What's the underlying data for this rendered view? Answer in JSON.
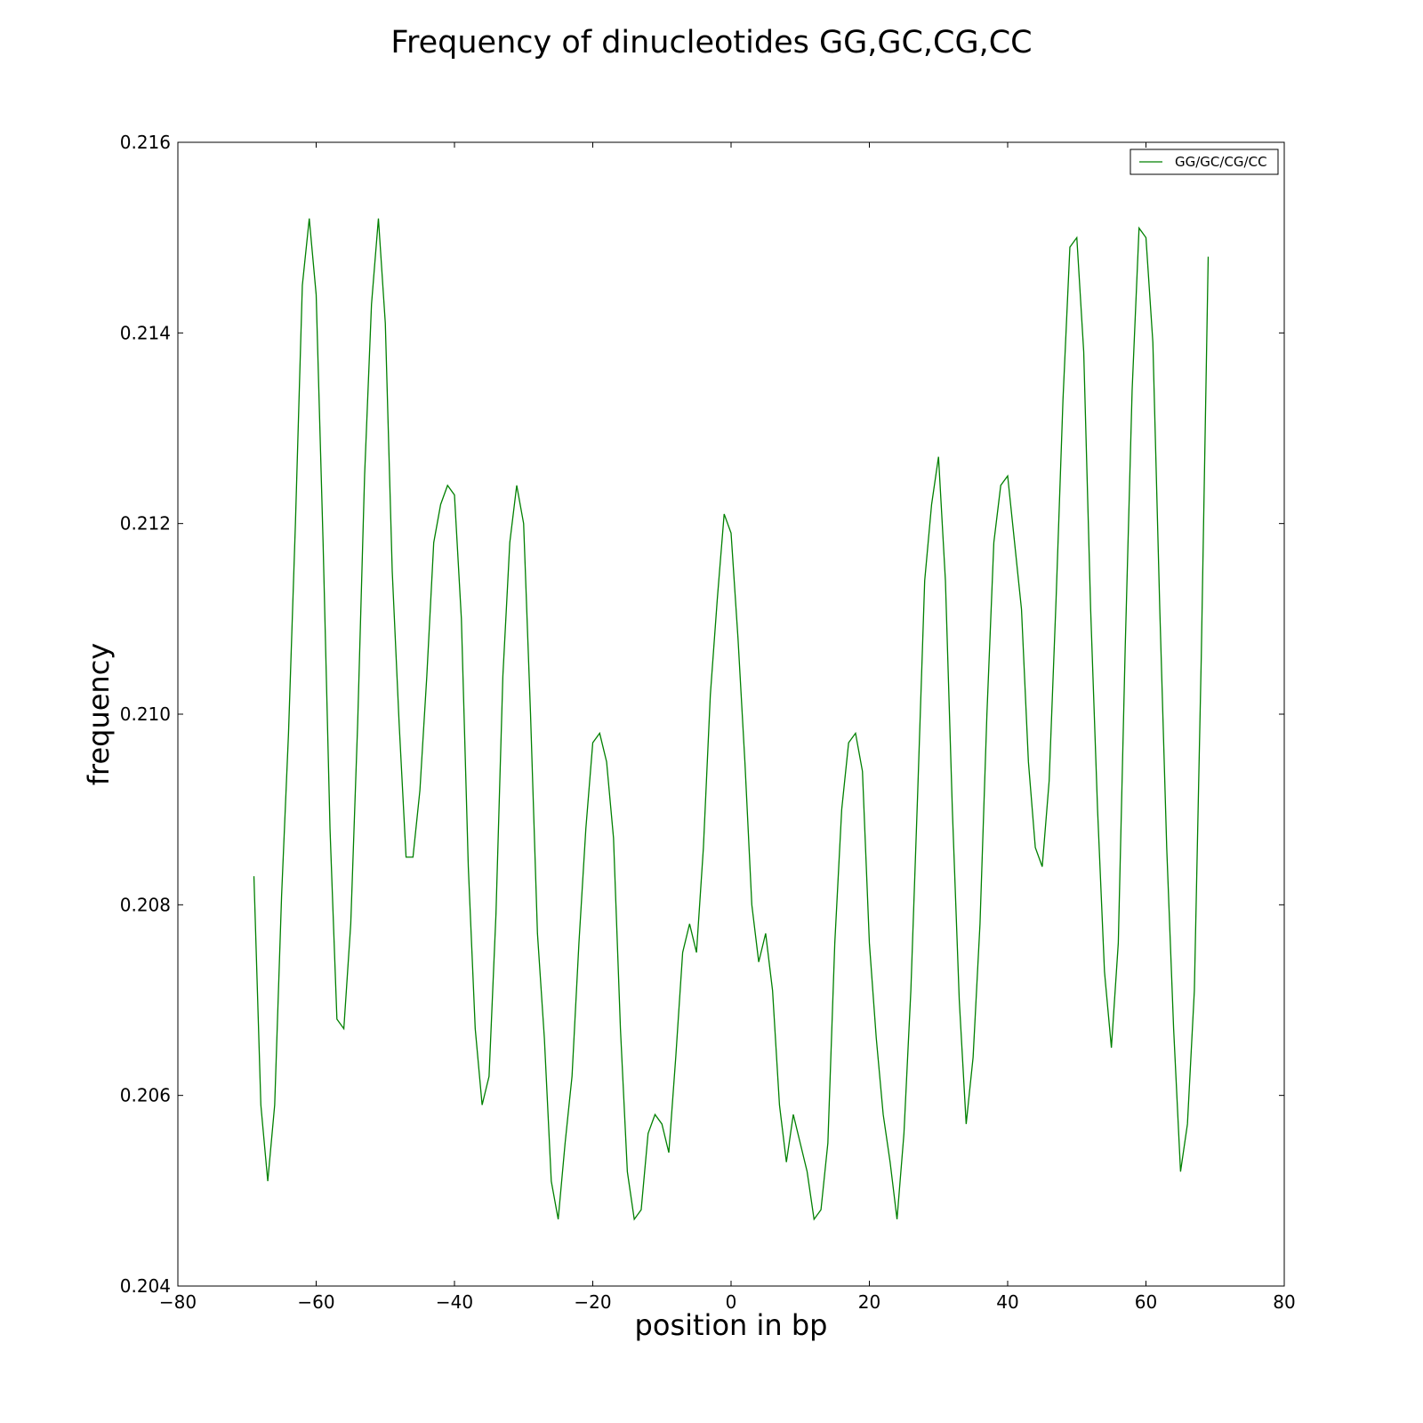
{
  "chart_data": {
    "type": "line",
    "title": "Frequency of dinucleotides GG,GC,CG,CC",
    "xlabel": "position in bp",
    "ylabel": "frequency",
    "xlim": [
      -80,
      80
    ],
    "ylim": [
      0.204,
      0.216
    ],
    "x_ticks": [
      -80,
      -60,
      -40,
      -20,
      0,
      20,
      40,
      60,
      80
    ],
    "x_tick_labels": [
      "−80",
      "−60",
      "−40",
      "−20",
      "0",
      "20",
      "40",
      "60",
      "80"
    ],
    "y_ticks": [
      0.204,
      0.206,
      0.208,
      0.21,
      0.212,
      0.214,
      0.216
    ],
    "y_tick_labels": [
      "0.204",
      "0.206",
      "0.208",
      "0.210",
      "0.212",
      "0.214",
      "0.216"
    ],
    "grid": false,
    "legend_position": "top-right",
    "series": [
      {
        "name": "GG/GC/CG/CC",
        "color": "#008000",
        "x": [
          -69,
          -68,
          -67,
          -66,
          -65,
          -64,
          -63,
          -62,
          -61,
          -60,
          -59,
          -58,
          -57,
          -56,
          -55,
          -54,
          -53,
          -52,
          -51,
          -50,
          -49,
          -48,
          -47,
          -46,
          -45,
          -44,
          -43,
          -42,
          -41,
          -40,
          -39,
          -38,
          -37,
          -36,
          -35,
          -34,
          -33,
          -32,
          -31,
          -30,
          -29,
          -28,
          -27,
          -26,
          -25,
          -24,
          -23,
          -22,
          -21,
          -20,
          -19,
          -18,
          -17,
          -16,
          -15,
          -14,
          -13,
          -12,
          -11,
          -10,
          -9,
          -8,
          -7,
          -6,
          -5,
          -4,
          -3,
          -2,
          -1,
          0,
          1,
          2,
          3,
          4,
          5,
          6,
          7,
          8,
          9,
          10,
          11,
          12,
          13,
          14,
          15,
          16,
          17,
          18,
          19,
          20,
          21,
          22,
          23,
          24,
          25,
          26,
          27,
          28,
          29,
          30,
          31,
          32,
          33,
          34,
          35,
          36,
          37,
          38,
          39,
          40,
          41,
          42,
          43,
          44,
          45,
          46,
          47,
          48,
          49,
          50,
          51,
          52,
          53,
          54,
          55,
          56,
          57,
          58,
          59,
          60,
          61,
          62,
          63,
          64,
          65,
          66,
          67,
          68,
          69
        ],
        "y": [
          0.2083,
          0.2059,
          0.2051,
          0.2059,
          0.2081,
          0.2098,
          0.212,
          0.2145,
          0.2152,
          0.2144,
          0.2118,
          0.2088,
          0.2068,
          0.2067,
          0.2078,
          0.2099,
          0.2125,
          0.2143,
          0.2152,
          0.2141,
          0.2115,
          0.2099,
          0.2085,
          0.2085,
          0.2092,
          0.2104,
          0.2118,
          0.2122,
          0.2124,
          0.2123,
          0.211,
          0.2084,
          0.2067,
          0.2059,
          0.2062,
          0.2079,
          0.2104,
          0.2118,
          0.2124,
          0.212,
          0.21,
          0.2077,
          0.2066,
          0.2051,
          0.2047,
          0.2055,
          0.2062,
          0.2076,
          0.2088,
          0.2097,
          0.2098,
          0.2095,
          0.2087,
          0.2067,
          0.2052,
          0.2047,
          0.2048,
          0.2056,
          0.2058,
          0.2057,
          0.2054,
          0.2064,
          0.2075,
          0.2078,
          0.2075,
          0.2086,
          0.2102,
          0.2112,
          0.2121,
          0.2119,
          0.2108,
          0.2095,
          0.208,
          0.2074,
          0.2077,
          0.2071,
          0.2059,
          0.2053,
          0.2058,
          0.2055,
          0.2052,
          0.2047,
          0.2048,
          0.2055,
          0.2076,
          0.209,
          0.2097,
          0.2098,
          0.2094,
          0.2076,
          0.2066,
          0.2058,
          0.2053,
          0.2047,
          0.2056,
          0.2071,
          0.2092,
          0.2114,
          0.2122,
          0.2127,
          0.2114,
          0.209,
          0.207,
          0.2057,
          0.2064,
          0.2078,
          0.21,
          0.2118,
          0.2124,
          0.2125,
          0.2118,
          0.2111,
          0.2095,
          0.2086,
          0.2084,
          0.2093,
          0.2112,
          0.2133,
          0.2149,
          0.215,
          0.2138,
          0.2111,
          0.209,
          0.2073,
          0.2065,
          0.2076,
          0.2107,
          0.2134,
          0.2151,
          0.215,
          0.2139,
          0.2111,
          0.2086,
          0.2067,
          0.2052,
          0.2057,
          0.2071,
          0.2106,
          0.2148
        ]
      }
    ]
  }
}
